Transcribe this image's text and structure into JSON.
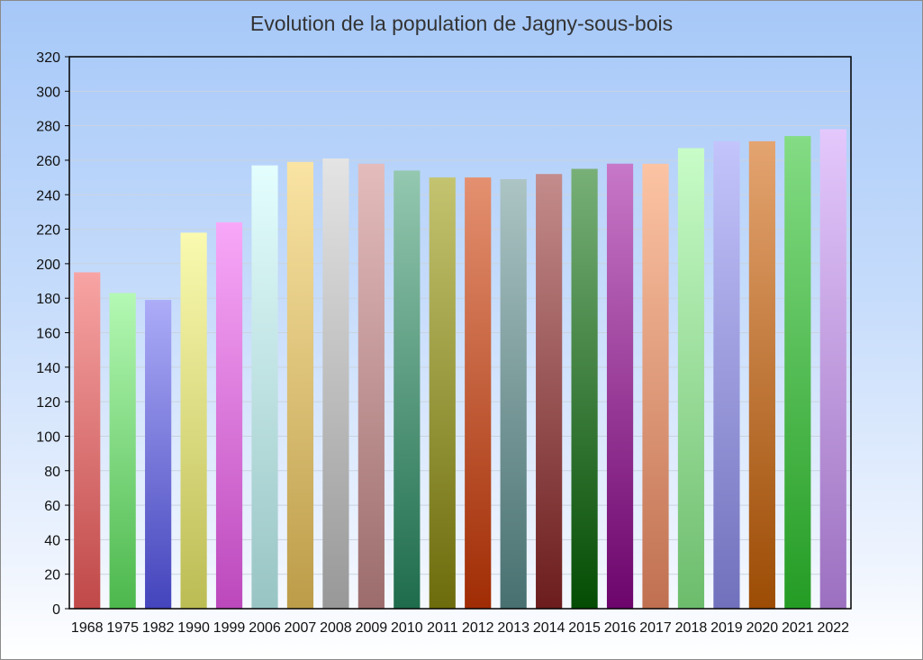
{
  "chart_data": {
    "type": "bar",
    "title": "Evolution de la population de Jagny-sous-bois",
    "xlabel": "",
    "ylabel": "",
    "ylim": [
      0,
      320
    ],
    "y_ticks": [
      0,
      20,
      40,
      60,
      80,
      100,
      120,
      140,
      160,
      180,
      200,
      220,
      240,
      260,
      280,
      300,
      320
    ],
    "grid": true,
    "legend": "none",
    "categories": [
      "1968",
      "1975",
      "1982",
      "1990",
      "1999",
      "2006",
      "2007",
      "2008",
      "2009",
      "2010",
      "2011",
      "2012",
      "2013",
      "2014",
      "2015",
      "2016",
      "2017",
      "2018",
      "2019",
      "2020",
      "2021",
      "2022"
    ],
    "values": [
      195,
      183,
      179,
      218,
      224,
      257,
      259,
      261,
      258,
      254,
      250,
      250,
      249,
      252,
      255,
      258,
      258,
      267,
      271,
      271,
      274,
      278
    ],
    "colors": [
      [
        "#f8a4a4",
        "#c04848"
      ],
      [
        "#b4f8b4",
        "#4cb84c"
      ],
      [
        "#acacf8",
        "#4444bc"
      ],
      [
        "#fafab0",
        "#bcbc54"
      ],
      [
        "#f8a8f8",
        "#bc48bc"
      ],
      [
        "#e4fefe",
        "#98c4c4"
      ],
      [
        "#fae4a4",
        "#bc9c48"
      ],
      [
        "#e4e4e4",
        "#989898"
      ],
      [
        "#e4bcbc",
        "#9c6c6c"
      ],
      [
        "#94c8b0",
        "#1e6c4c"
      ],
      [
        "#c4c470",
        "#6c6c0c"
      ],
      [
        "#e49070",
        "#a02c04"
      ],
      [
        "#acc4c4",
        "#487070"
      ],
      [
        "#c48c8c",
        "#6c1c1c"
      ],
      [
        "#78b078",
        "#044c04"
      ],
      [
        "#c878c8",
        "#6c046c"
      ],
      [
        "#fcc4a4",
        "#c07050"
      ],
      [
        "#c8fcc8",
        "#6cbc6c"
      ],
      [
        "#c4c4fc",
        "#7070bc"
      ],
      [
        "#e4a470",
        "#9c4c04"
      ],
      [
        "#84dc84",
        "#249c24"
      ],
      [
        "#e4c8fc",
        "#9c70c0"
      ]
    ]
  }
}
